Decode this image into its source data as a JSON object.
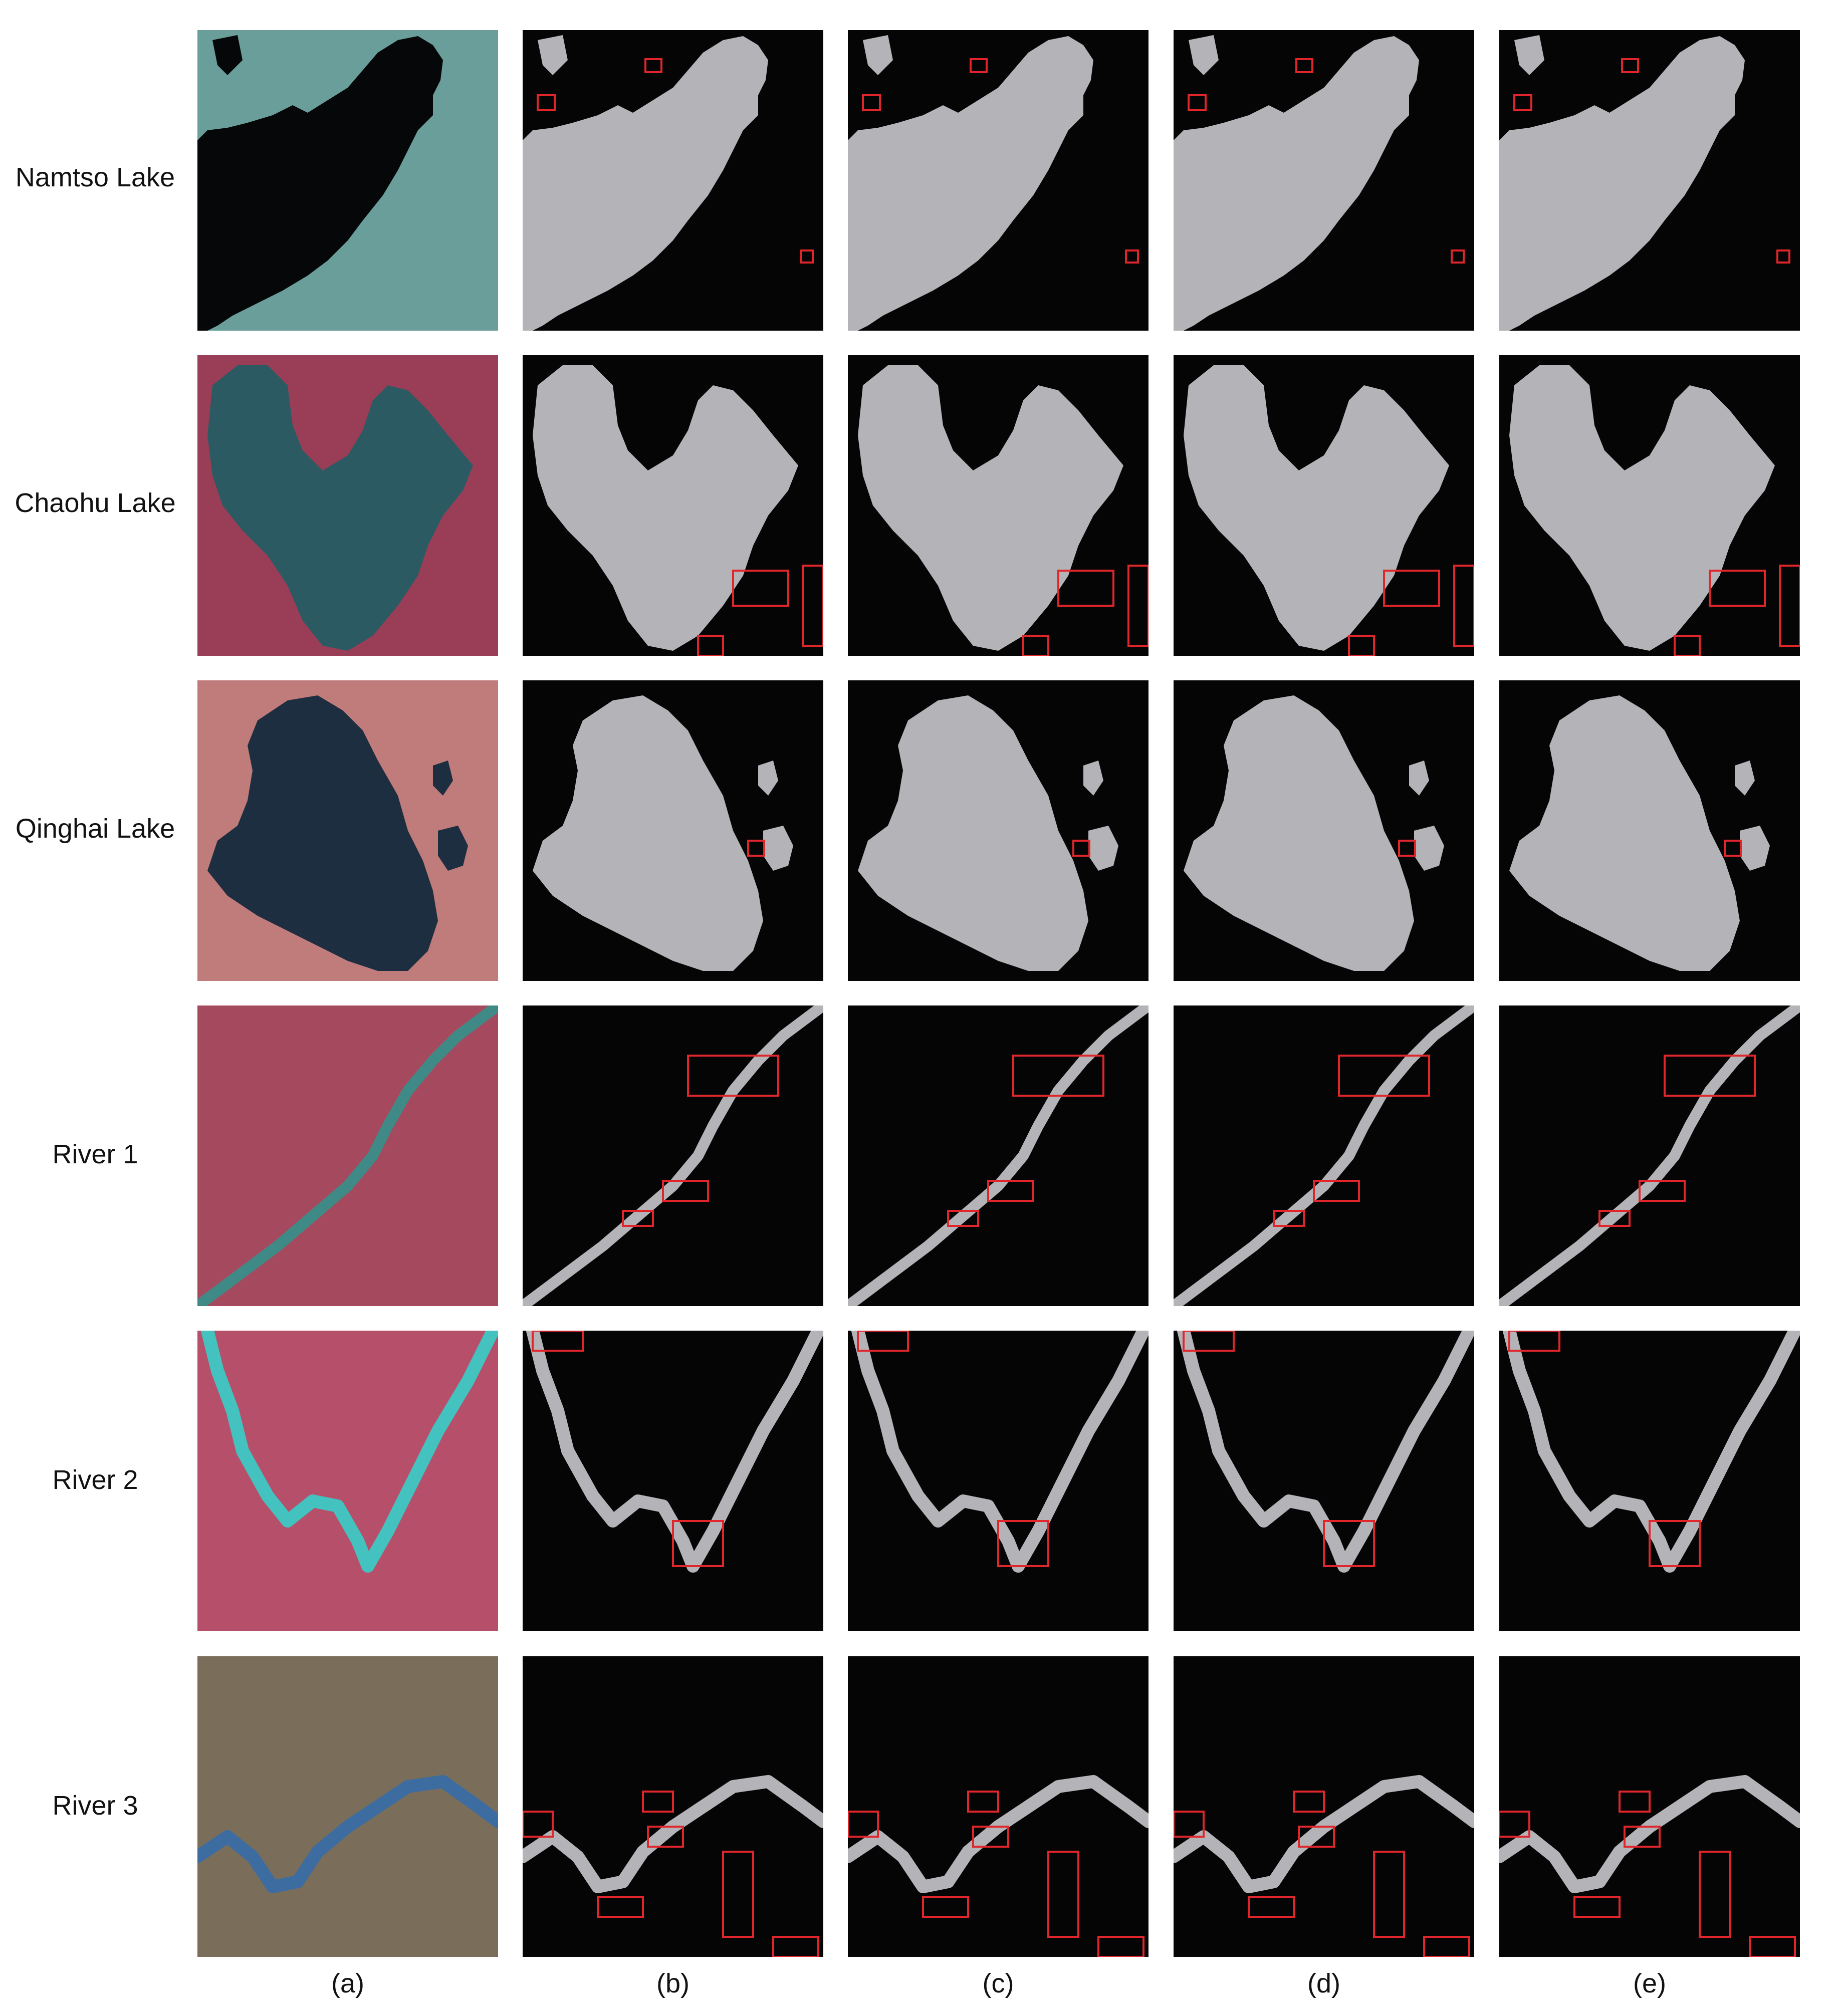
{
  "figure": {
    "row_labels": [
      "Namtso Lake",
      "Chaohu Lake",
      "Qinghai Lake",
      "River 1",
      "River 2",
      "River 3"
    ],
    "column_labels": [
      "(a)",
      "(b)",
      "(c)",
      "(d)",
      "(e)"
    ]
  },
  "colors": {
    "background": "#ffffff",
    "mask_background": "#050505",
    "water_mask": "#b4b4b8",
    "highlight_box": "#e0262b"
  }
}
